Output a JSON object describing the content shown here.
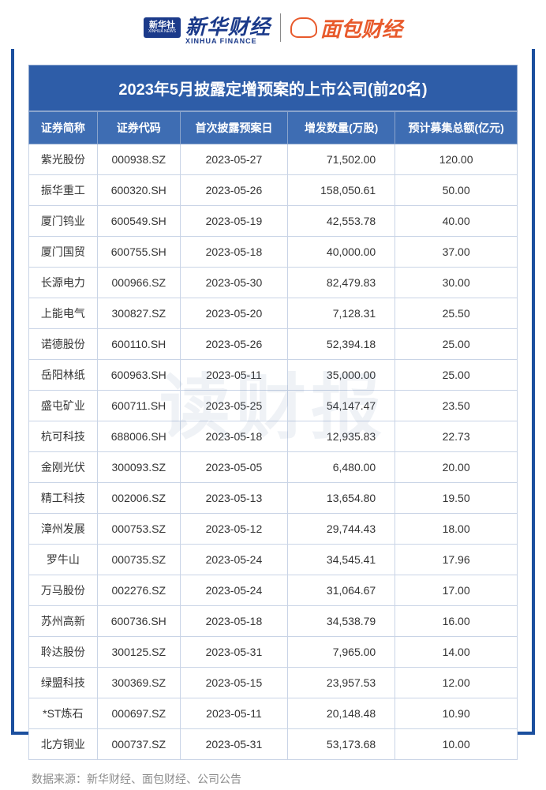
{
  "logos": {
    "xinhua_badge": "新华社",
    "xinhua_badge_sub": "XINHUA NEWS",
    "xinhua_finance_cn": "新华财经",
    "xinhua_finance_en": "XINHUA FINANCE",
    "mianbao": "面包财经"
  },
  "watermark": "读财报",
  "table": {
    "title": "2023年5月披露定增预案的上市公司(前20名)",
    "columns": [
      "证券简称",
      "证券代码",
      "首次披露预案日",
      "增发数量(万股)",
      "预计募集总额(亿元)"
    ],
    "rows": [
      [
        "紫光股份",
        "000938.SZ",
        "2023-05-27",
        "71,502.00",
        "120.00"
      ],
      [
        "振华重工",
        "600320.SH",
        "2023-05-26",
        "158,050.61",
        "50.00"
      ],
      [
        "厦门钨业",
        "600549.SH",
        "2023-05-19",
        "42,553.78",
        "40.00"
      ],
      [
        "厦门国贸",
        "600755.SH",
        "2023-05-18",
        "40,000.00",
        "37.00"
      ],
      [
        "长源电力",
        "000966.SZ",
        "2023-05-30",
        "82,479.83",
        "30.00"
      ],
      [
        "上能电气",
        "300827.SZ",
        "2023-05-20",
        "7,128.31",
        "25.50"
      ],
      [
        "诺德股份",
        "600110.SH",
        "2023-05-26",
        "52,394.18",
        "25.00"
      ],
      [
        "岳阳林纸",
        "600963.SH",
        "2023-05-11",
        "35,000.00",
        "25.00"
      ],
      [
        "盛屯矿业",
        "600711.SH",
        "2023-05-25",
        "54,147.47",
        "23.50"
      ],
      [
        "杭可科技",
        "688006.SH",
        "2023-05-18",
        "12,935.83",
        "22.73"
      ],
      [
        "金刚光伏",
        "300093.SZ",
        "2023-05-05",
        "6,480.00",
        "20.00"
      ],
      [
        "精工科技",
        "002006.SZ",
        "2023-05-13",
        "13,654.80",
        "19.50"
      ],
      [
        "漳州发展",
        "000753.SZ",
        "2023-05-12",
        "29,744.43",
        "18.00"
      ],
      [
        "罗牛山",
        "000735.SZ",
        "2023-05-24",
        "34,545.41",
        "17.96"
      ],
      [
        "万马股份",
        "002276.SZ",
        "2023-05-24",
        "31,064.67",
        "17.00"
      ],
      [
        "苏州高新",
        "600736.SH",
        "2023-05-18",
        "34,538.79",
        "16.00"
      ],
      [
        "聆达股份",
        "300125.SZ",
        "2023-05-31",
        "7,965.00",
        "14.00"
      ],
      [
        "绿盟科技",
        "300369.SZ",
        "2023-05-15",
        "23,957.53",
        "12.00"
      ],
      [
        "*ST炼石",
        "000697.SZ",
        "2023-05-11",
        "20,148.48",
        "10.90"
      ],
      [
        "北方铜业",
        "000737.SZ",
        "2023-05-31",
        "53,173.68",
        "10.00"
      ]
    ]
  },
  "footer": "数据来源：新华财经、面包财经、公司公告",
  "styling": {
    "title_bg": "#2e5da8",
    "header_bg": "#3e6db3",
    "header_border": "#8aa4cc",
    "cell_border": "#c9d4e6",
    "frame_border": "#1b4f9e",
    "text_color": "#333333",
    "footer_color": "#8c8c8c",
    "mianbao_color": "#e85a2c",
    "title_fontsize": 20,
    "header_fontsize": 14,
    "cell_fontsize": 14,
    "col_widths_pct": [
      14,
      17,
      22,
      22,
      25
    ],
    "col_align": [
      "center",
      "center",
      "center",
      "right",
      "center"
    ]
  }
}
